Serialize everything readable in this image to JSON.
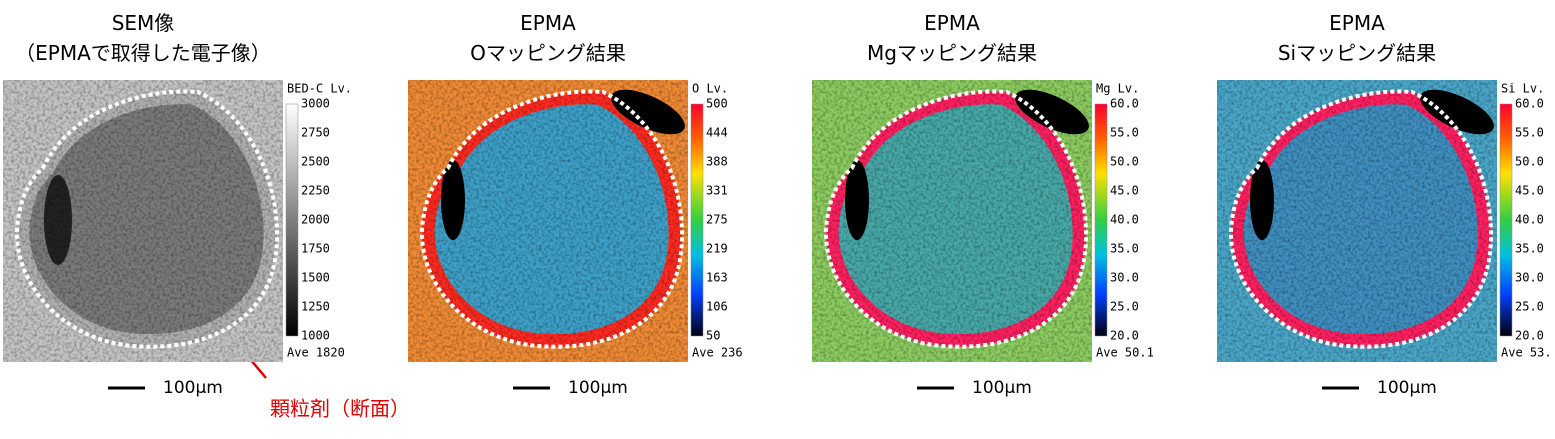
{
  "panels": [
    {
      "title": [
        "SEM像",
        "（EPMAで取得した電子像）"
      ],
      "colorbar": {
        "label": "BED-C Lv.",
        "ticks": [
          "3000",
          "2750",
          "2500",
          "2250",
          "2000",
          "1750",
          "1500",
          "1250",
          "1000"
        ],
        "average": "Ave 1820"
      },
      "scale_bar": "100μm"
    },
    {
      "title": [
        "EPMA",
        "Oマッピング結果"
      ],
      "colorbar": {
        "label": "O Lv.",
        "ticks": [
          "500",
          "444",
          "388",
          "331",
          "275",
          "219",
          "163",
          "106",
          "50"
        ],
        "average": "Ave 236"
      },
      "scale_bar": "100μm"
    },
    {
      "title": [
        "EPMA",
        "Mgマッピング結果"
      ],
      "colorbar": {
        "label": "Mg Lv.",
        "ticks": [
          "60.0",
          "55.0",
          "50.0",
          "45.0",
          "40.0",
          "35.0",
          "30.0",
          "25.0",
          "20.0"
        ],
        "average": "Ave 50.1"
      },
      "scale_bar": "100μm"
    },
    {
      "title": [
        "EPMA",
        "Siマッピング結果"
      ],
      "colorbar": {
        "label": "Si Lv.",
        "ticks": [
          "60.0",
          "55.0",
          "50.0",
          "45.0",
          "40.0",
          "35.0",
          "30.0",
          "25.0",
          "20.0"
        ],
        "average": "Ave 53."
      },
      "scale_bar": "100μm"
    }
  ],
  "annotation": "顆粒剤（断面）"
}
